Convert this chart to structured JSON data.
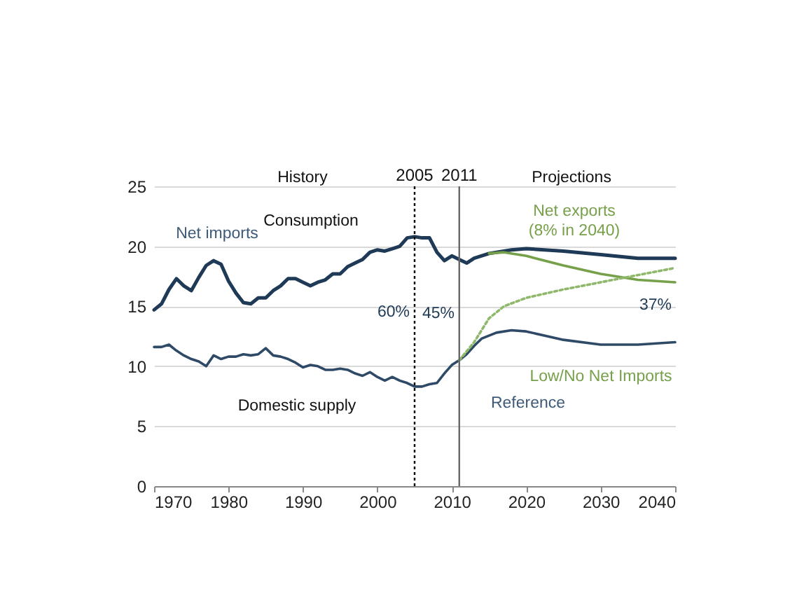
{
  "chart_data": {
    "type": "line",
    "series": [
      {
        "color": "#1f3a56",
        "x": [
          1970,
          1971,
          1972,
          1973,
          1974,
          1975,
          1976,
          1977,
          1978,
          1979,
          1980,
          1981,
          1982,
          1983,
          1984,
          1985,
          1986,
          1987,
          1988,
          1989,
          1990,
          1991,
          1992,
          1993,
          1994,
          1995,
          1996,
          1997,
          1998,
          1999,
          2000,
          2001,
          2002,
          2003,
          2004,
          2005,
          2006,
          2007,
          2008,
          2009,
          2010,
          2011,
          2012,
          2013,
          2015,
          2018,
          2020,
          2025,
          2030,
          2035,
          2040
        ],
        "values": [
          14.7,
          15.2,
          16.4,
          17.3,
          16.7,
          16.3,
          17.4,
          18.4,
          18.8,
          18.5,
          17.1,
          16.1,
          15.3,
          15.2,
          15.7,
          15.7,
          16.3,
          16.7,
          17.3,
          17.3,
          17.0,
          16.7,
          17.0,
          17.2,
          17.7,
          17.7,
          18.3,
          18.6,
          18.9,
          19.5,
          19.7,
          19.6,
          19.8,
          20.0,
          20.7,
          20.8,
          20.7,
          20.7,
          19.5,
          18.8,
          19.2,
          18.9,
          18.6,
          19.0,
          19.4,
          19.7,
          19.8,
          19.6,
          19.3,
          19.0,
          19.0
        ]
      },
      {
        "color": "#2f4a66",
        "x": [
          1970,
          1971,
          1972,
          1973,
          1974,
          1975,
          1976,
          1977,
          1978,
          1979,
          1980,
          1981,
          1982,
          1983,
          1984,
          1985,
          1986,
          1987,
          1988,
          1989,
          1990,
          1991,
          1992,
          1993,
          1994,
          1995,
          1996,
          1997,
          1998,
          1999,
          2000,
          2001,
          2002,
          2003,
          2004,
          2005,
          2006,
          2007,
          2008,
          2009,
          2010,
          2011,
          2012,
          2013,
          2014,
          2016,
          2018,
          2020,
          2025,
          2030,
          2035,
          2040
        ],
        "values": [
          11.6,
          11.6,
          11.8,
          11.3,
          10.9,
          10.6,
          10.4,
          10.0,
          10.9,
          10.6,
          10.8,
          10.8,
          11.0,
          10.9,
          11.0,
          11.5,
          10.9,
          10.8,
          10.6,
          10.3,
          9.9,
          10.1,
          10.0,
          9.7,
          9.7,
          9.8,
          9.7,
          9.4,
          9.2,
          9.5,
          9.1,
          8.8,
          9.1,
          8.8,
          8.6,
          8.3,
          8.3,
          8.5,
          8.6,
          9.4,
          10.1,
          10.5,
          11.0,
          11.7,
          12.3,
          12.8,
          13.0,
          12.9,
          12.2,
          11.8,
          11.8,
          12.0
        ]
      },
      {
        "color": "#77a04a",
        "x": [
          2015,
          2017,
          2020,
          2025,
          2030,
          2035,
          2040
        ],
        "values": [
          19.4,
          19.5,
          19.2,
          18.4,
          17.7,
          17.2,
          17.0
        ]
      },
      {
        "color": "#8fb86a",
        "line_style": "dotted",
        "x": [
          2011,
          2013,
          2015,
          2017,
          2020,
          2025,
          2030,
          2035,
          2040
        ],
        "values": [
          10.5,
          12.0,
          14.0,
          15.0,
          15.7,
          16.4,
          17.0,
          17.6,
          18.2
        ]
      }
    ],
    "xlim": [
      1970,
      2040
    ],
    "xticks": [
      1970,
      1980,
      1990,
      2000,
      2010,
      2020,
      2030,
      2040
    ],
    "ylim": [
      0,
      25
    ],
    "yticks": [
      0,
      5,
      10,
      15,
      20,
      25
    ],
    "grid": "y",
    "ref_lines": [
      {
        "axis": "x",
        "value": 2005,
        "label": "2005",
        "line_style": "dotted",
        "color": "#000000"
      },
      {
        "axis": "x",
        "value": 2011,
        "label": "2011",
        "line_style": "solid",
        "color": "#666666"
      }
    ],
    "annotations": [
      "History",
      "Projections",
      "Net imports",
      "Consumption",
      "Domestic supply",
      "60%",
      "45%",
      "37%",
      "Net exports",
      "(8% in 2040)",
      "Low/No Net Imports",
      "Reference"
    ]
  }
}
